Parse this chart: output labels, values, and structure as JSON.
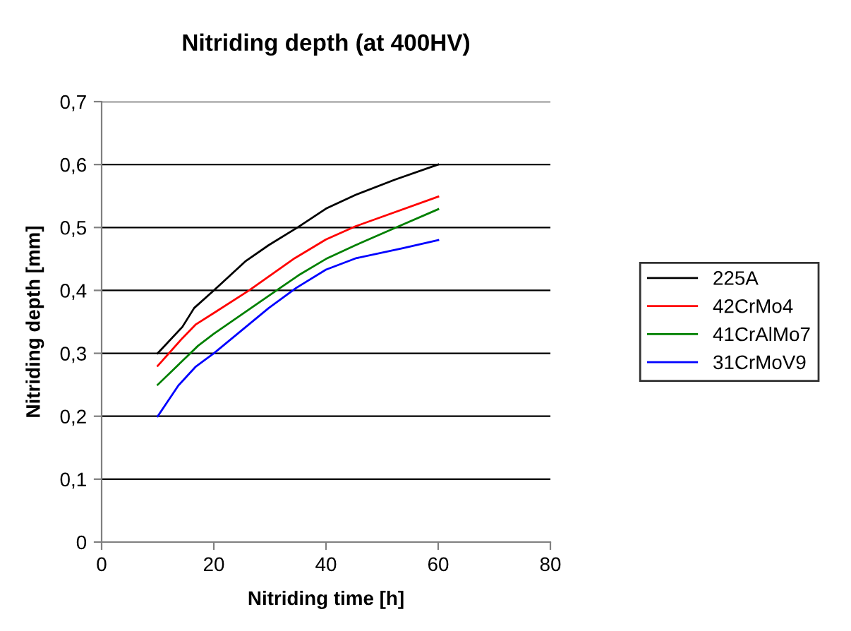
{
  "chart_data": {
    "type": "line",
    "title": "Nitriding depth (at 400HV)",
    "xlabel": "Nitriding time [h]",
    "ylabel": "Nitriding depth [mm]",
    "xlim": [
      0,
      80
    ],
    "xticks": [
      0,
      20,
      40,
      60,
      80
    ],
    "ylim": [
      0,
      0.7
    ],
    "yticks": [
      {
        "value": 0,
        "label": "0"
      },
      {
        "value": 0.1,
        "label": "0,1"
      },
      {
        "value": 0.2,
        "label": "0,2"
      },
      {
        "value": 0.3,
        "label": "0,3"
      },
      {
        "value": 0.4,
        "label": "0,4"
      },
      {
        "value": 0.5,
        "label": "0,5"
      },
      {
        "value": 0.6,
        "label": "0,6"
      },
      {
        "value": 0.7,
        "label": "0,7"
      }
    ],
    "grid": "y",
    "legend": "right",
    "marker": "none",
    "line_style": "solid",
    "series": [
      {
        "name": "225A",
        "color": "#000000",
        "x": [
          10,
          14.4,
          16.5,
          20,
          25.6,
          29.8,
          35.1,
          40,
          45.3,
          52.3,
          60
        ],
        "values": [
          0.3,
          0.342,
          0.372,
          0.4,
          0.446,
          0.472,
          0.501,
          0.53,
          0.552,
          0.576,
          0.6
        ]
      },
      {
        "name": "42CrMo4",
        "color": "#ff0000",
        "x": [
          10,
          14.4,
          16.8,
          20,
          26.3,
          34.4,
          40,
          45.3,
          60
        ],
        "values": [
          0.28,
          0.324,
          0.346,
          0.364,
          0.4,
          0.451,
          0.481,
          0.502,
          0.549
        ]
      },
      {
        "name": "41CrAlMo7",
        "color": "#008000",
        "x": [
          10,
          15.1,
          17.2,
          20,
          31.2,
          35.1,
          40,
          45.3,
          53,
          60
        ],
        "values": [
          0.25,
          0.294,
          0.312,
          0.331,
          0.4,
          0.424,
          0.45,
          0.472,
          0.502,
          0.529
        ]
      },
      {
        "name": "31CrMoV9",
        "color": "#0000ff",
        "x": [
          10,
          13.7,
          16.8,
          20,
          29.8,
          34.7,
          40,
          45.3,
          53.7,
          60
        ],
        "values": [
          0.2,
          0.249,
          0.279,
          0.3,
          0.372,
          0.404,
          0.433,
          0.451,
          0.467,
          0.48
        ]
      }
    ]
  }
}
